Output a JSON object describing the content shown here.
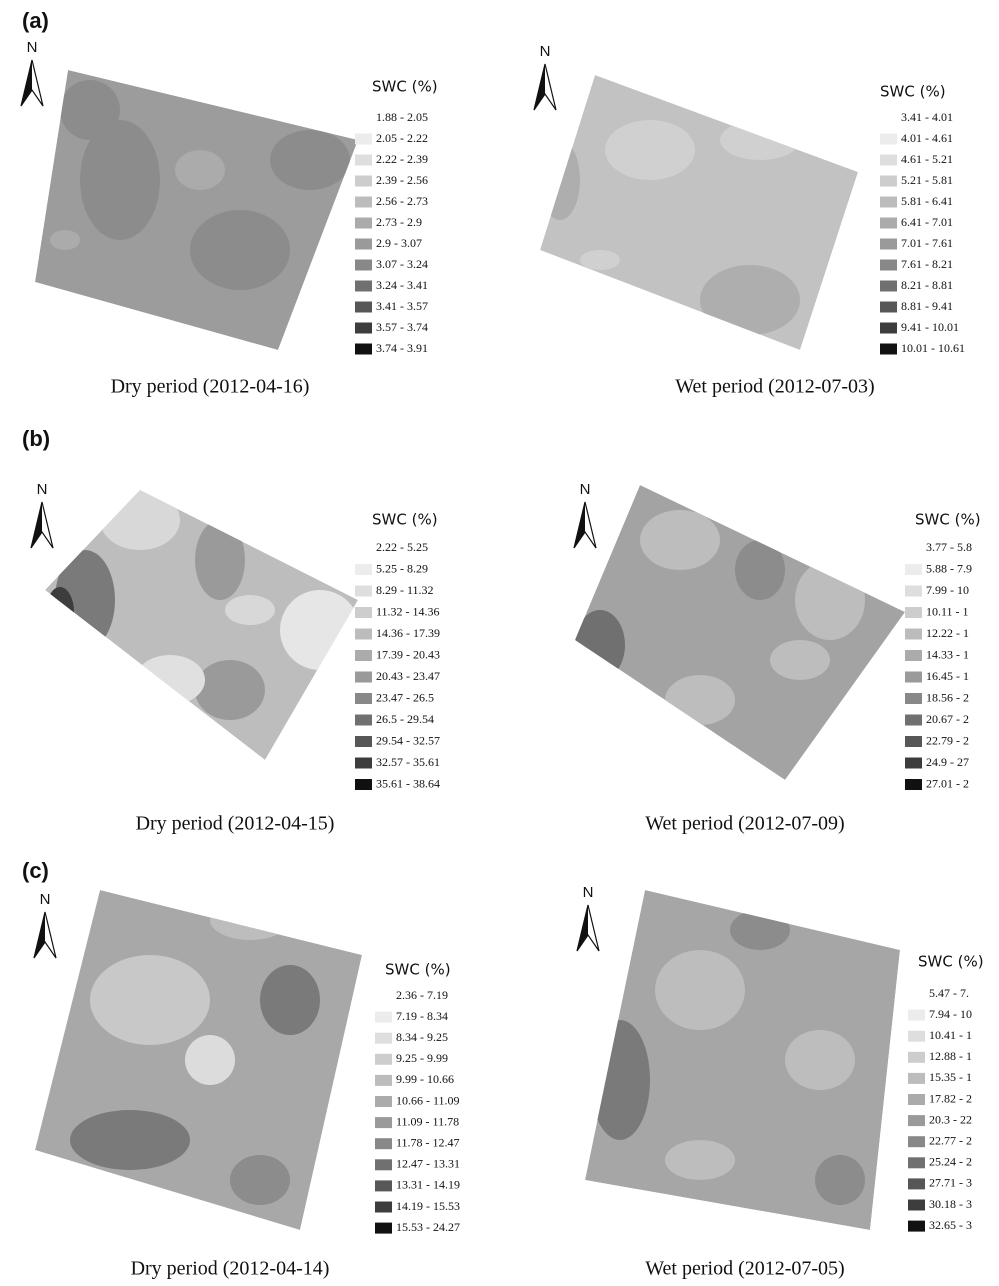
{
  "north_label": "N",
  "legend_colors": [
    "#ffffff",
    "#ececec",
    "#dedede",
    "#cdcdcd",
    "#bcbcbc",
    "#ababab",
    "#9a9a9a",
    "#888888",
    "#707070",
    "#575757",
    "#3d3d3d",
    "#111111"
  ],
  "panels": [
    {
      "label": "(a)",
      "maps": [
        {
          "caption": "Dry period (2012-04-16)",
          "legend_title": "SWC (%)",
          "legend_items": [
            "1.88 - 2.05",
            "2.05 - 2.22",
            "2.22 - 2.39",
            "2.39 - 2.56",
            "2.56 - 2.73",
            "2.73 - 2.9",
            "2.9 - 3.07",
            "3.07 - 3.24",
            "3.24 - 3.41",
            "3.41 - 3.57",
            "3.57 - 3.74",
            "3.74 - 3.91"
          ]
        },
        {
          "caption": "Wet period (2012-07-03)",
          "legend_title": "SWC (%)",
          "legend_items": [
            "3.41 - 4.01",
            "4.01 - 4.61",
            "4.61 - 5.21",
            "5.21 - 5.81",
            "5.81 - 6.41",
            "6.41 - 7.01",
            "7.01 - 7.61",
            "7.61 - 8.21",
            "8.21 - 8.81",
            "8.81 - 9.41",
            "9.41 - 10.01",
            "10.01 - 10.61"
          ]
        }
      ]
    },
    {
      "label": "(b)",
      "maps": [
        {
          "caption": "Dry period (2012-04-15)",
          "legend_title": "SWC (%)",
          "legend_items": [
            "2.22 - 5.25",
            "5.25 - 8.29",
            "8.29 - 11.32",
            "11.32 - 14.36",
            "14.36 - 17.39",
            "17.39 - 20.43",
            "20.43 - 23.47",
            "23.47 - 26.5",
            "26.5 - 29.54",
            "29.54 - 32.57",
            "32.57 - 35.61",
            "35.61 - 38.64"
          ]
        },
        {
          "caption": "Wet period (2012-07-09)",
          "legend_title": "SWC (%)",
          "legend_items": [
            "3.77 - 5.8",
            "5.88 - 7.9",
            "7.99 - 10",
            "10.11 - 1",
            "12.22 - 1",
            "14.33 - 1",
            "16.45 - 1",
            "18.56 - 2",
            "20.67 - 2",
            "22.79 - 2",
            "24.9 - 27",
            "27.01 - 2"
          ]
        }
      ]
    },
    {
      "label": "(c)",
      "maps": [
        {
          "caption": "Dry period (2012-04-14)",
          "legend_title": "SWC (%)",
          "legend_items": [
            "2.36 - 7.19",
            "7.19 - 8.34",
            "8.34 - 9.25",
            "9.25 - 9.99",
            "9.99 - 10.66",
            "10.66 - 11.09",
            "11.09 - 11.78",
            "11.78 - 12.47",
            "12.47 - 13.31",
            "13.31 - 14.19",
            "14.19 - 15.53",
            "15.53 - 24.27"
          ]
        },
        {
          "caption": "Wet period (2012-07-05)",
          "legend_title": "SWC (%)",
          "legend_items": [
            "5.47 - 7.",
            "7.94 - 10",
            "10.41 - 1",
            "12.88 - 1",
            "15.35 - 1",
            "17.82 - 2",
            "20.3 - 22",
            "22.77 - 2",
            "25.24 - 2",
            "27.71 - 3",
            "30.18 - 3",
            "32.65 - 3"
          ]
        }
      ]
    }
  ]
}
